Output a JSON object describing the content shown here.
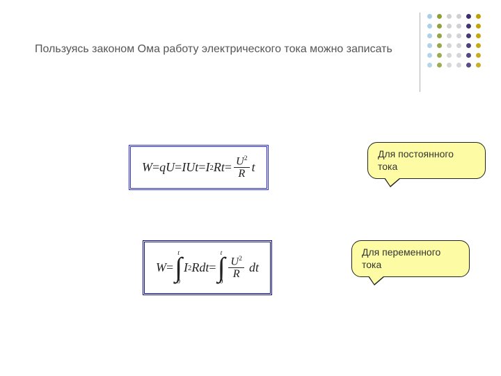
{
  "title_text": "Пользуясь законом Ома работу электрического тока можно записать",
  "formula1": {
    "parts": {
      "w": "W",
      "eq": " = ",
      "qU": "qU",
      "IUt": "IUt",
      "I": "I",
      "sq": "2",
      "Rt": "Rt",
      "U": "U",
      "R": "R",
      "t": "t"
    },
    "border_color": "#2a2ae0"
  },
  "formula2": {
    "parts": {
      "w": "W",
      "eq": " = ",
      "int_top": "t",
      "int_bot": "0",
      "I": "I",
      "sq": "2",
      "Rdt": "Rdt",
      "U": "U",
      "R": "R",
      "dt": "dt"
    },
    "border_color": "#0a0a90"
  },
  "callout1_text": "Для постоянного тока",
  "callout2_text": "Для переменного тока",
  "callout_fill": "#fdfca4",
  "callout_border": "#222222",
  "title_color": "#555555",
  "dot_grid": {
    "rows": 6,
    "cols": 6,
    "colors_by_col": [
      "#a7cfe8",
      "#8e9e38",
      "#d0d0d0",
      "#d0d0d0",
      "#3b2d6e",
      "#c0a000"
    ],
    "deco_line_color": "#b0b0b0"
  }
}
